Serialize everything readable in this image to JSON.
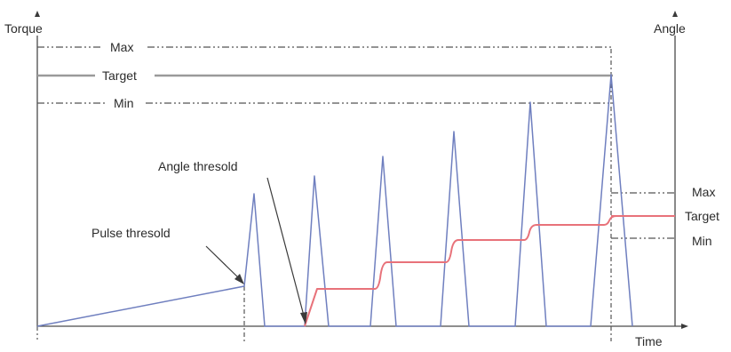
{
  "labels": {
    "torque_axis": "Torque",
    "angle_axis": "Angle",
    "time_axis": "Time",
    "max": "Max",
    "target": "Target",
    "min": "Min",
    "angle_max": "Max",
    "angle_target": "Target",
    "angle_min": "Min",
    "pulse_threshold": "Pulse thresold",
    "angle_threshold": "Angle thresold"
  },
  "colors": {
    "torque_line": "#6f7fbf",
    "angle_line": "#e8727a",
    "target_line": "#9a9a9a",
    "axis": "#4a4a4a"
  }
}
